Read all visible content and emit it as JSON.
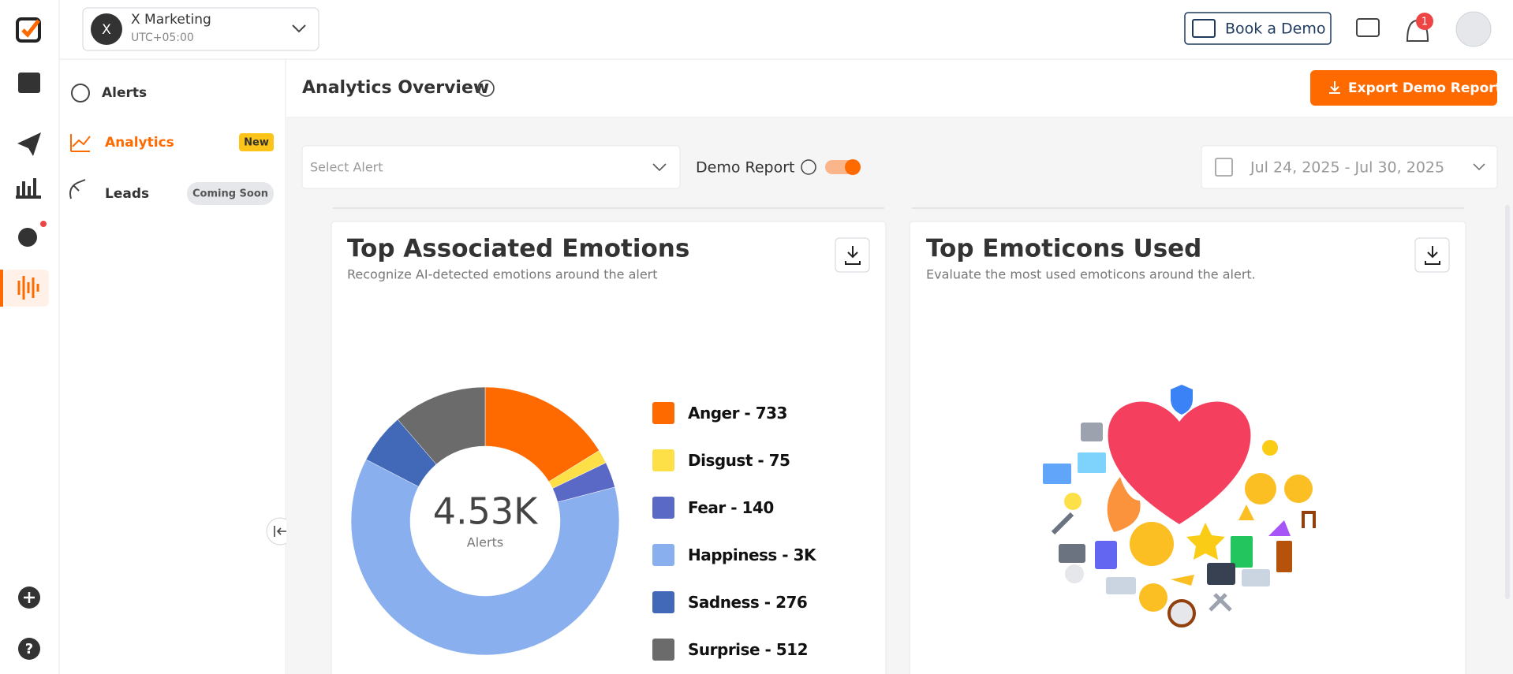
{
  "header": {
    "workspace_initial": "X",
    "workspace_name": "X Marketing",
    "timezone": "UTC+05:00",
    "book_demo": "Book a Demo",
    "notification_count": 1
  },
  "sidebar": {
    "items": [
      {
        "label": "Alerts"
      },
      {
        "label": "Analytics",
        "badge": "New"
      },
      {
        "label": "Leads",
        "badge": "Coming Soon"
      }
    ]
  },
  "page": {
    "title": "Analytics Overview",
    "export_button": "Export Demo Report",
    "alert_select_placeholder": "Select Alert",
    "demo_report_label": "Demo Report",
    "date_range": "Jul 24, 2025 - Jul 30, 2025"
  },
  "emoticons_card": {
    "title": "Top Emoticons Used",
    "subtitle": "Evaluate the most used emoticons around the alert."
  },
  "chart_data": {
    "type": "pie",
    "title": "Top Associated Emotions",
    "subtitle": "Recognize AI-detected emotions around the alert",
    "categories": [
      "Anger",
      "Disgust",
      "Fear",
      "Happiness",
      "Sadness",
      "Surprise"
    ],
    "values": [
      733,
      75,
      140,
      2794,
      276,
      512
    ],
    "value_labels": [
      "733",
      "75",
      "140",
      "3K",
      "276",
      "512"
    ],
    "colors": [
      "#ff6a00",
      "#fde047",
      "#5b69c6",
      "#8aafee",
      "#4169b8",
      "#6b6b6b"
    ],
    "donut": true,
    "center_label": "4.53K",
    "center_caption": "Alerts"
  }
}
